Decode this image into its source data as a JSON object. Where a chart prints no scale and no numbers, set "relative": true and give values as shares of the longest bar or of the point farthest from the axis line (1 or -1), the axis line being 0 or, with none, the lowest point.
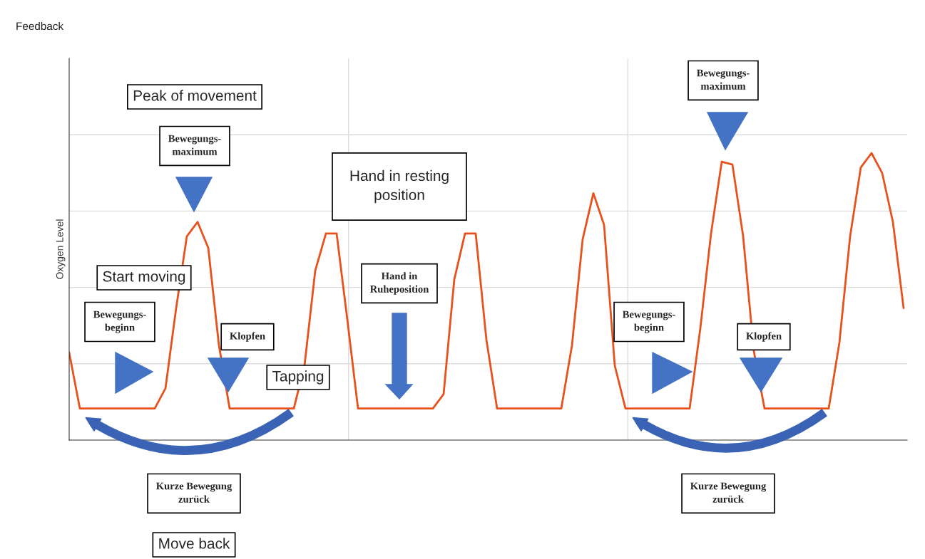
{
  "chart_data": {
    "type": "line",
    "title": "Feedback",
    "ylabel": "Oxygen Level",
    "relative": true,
    "grid": true,
    "legend": false,
    "marker": "none",
    "line_style": "solid",
    "categories": [
      null,
      null,
      null,
      null,
      null,
      null,
      null,
      null,
      null,
      null,
      null,
      null,
      null,
      null,
      null,
      null,
      null,
      null,
      null,
      null,
      null,
      null,
      null,
      null,
      null,
      null,
      null,
      null,
      null,
      null,
      null,
      null,
      null,
      null,
      null,
      null,
      null,
      null,
      null,
      null,
      null,
      null,
      null,
      null,
      null,
      null,
      null,
      null,
      null,
      null,
      null,
      null,
      null,
      null,
      null,
      null,
      null,
      null,
      null,
      null,
      null,
      null,
      null,
      null,
      null,
      null,
      null,
      null,
      null,
      null,
      null,
      null,
      null,
      null,
      null,
      null,
      null,
      null,
      null
    ],
    "series": [
      {
        "color": "#e8501c",
        "values": [
          0.305,
          0.11,
          0.11,
          0.11,
          0.11,
          0.11,
          0.11,
          0.11,
          0.11,
          0.18,
          0.46,
          0.71,
          0.76,
          0.67,
          0.33,
          0.11,
          0.11,
          0.11,
          0.11,
          0.11,
          0.11,
          0.11,
          0.26,
          0.59,
          0.72,
          0.72,
          0.42,
          0.11,
          0.11,
          0.11,
          0.11,
          0.11,
          0.11,
          0.11,
          0.11,
          0.16,
          0.56,
          0.72,
          0.72,
          0.35,
          0.11,
          0.11,
          0.11,
          0.11,
          0.11,
          0.11,
          0.11,
          0.33,
          0.7,
          0.86,
          0.75,
          0.26,
          0.11,
          0.11,
          0.11,
          0.11,
          0.11,
          0.11,
          0.11,
          0.39,
          0.72,
          0.97,
          0.96,
          0.71,
          0.31,
          0.11,
          0.11,
          0.11,
          0.11,
          0.11,
          0.11,
          0.11,
          0.34,
          0.71,
          0.95,
          1.0,
          0.93,
          0.76,
          0.46
        ]
      }
    ],
    "annotations": [
      "Peak of movement",
      "Bewegungs-\nmaximum",
      "Hand in resting\nposition",
      "Start moving",
      "Bewegungs-\nbeginn",
      "Klopfen",
      "Tapping",
      "Hand in\nRuheposition",
      "Bewegungs-\nmaximum",
      "Bewegungs-\nbeginn",
      "Klopfen",
      "Kurze Bewegung\nzurück",
      "Kurze Bewegung\nzurück",
      "Move back"
    ]
  }
}
